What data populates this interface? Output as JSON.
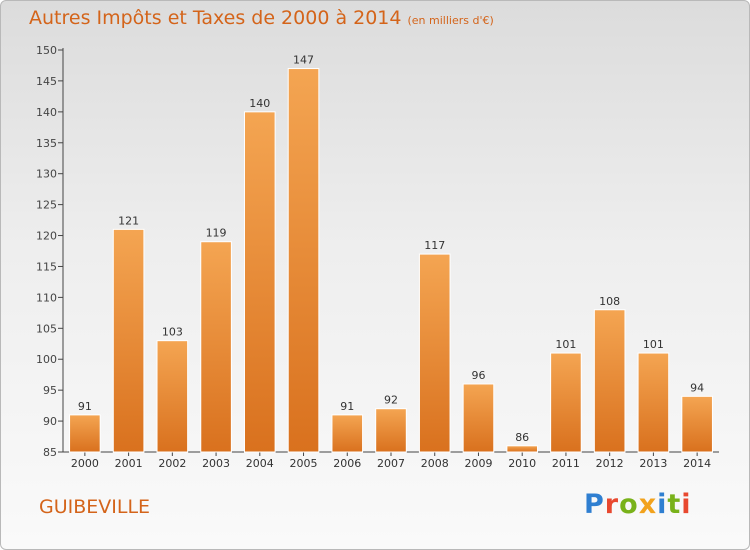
{
  "title": "Autres Impôts et Taxes de 2000 à 2014",
  "title_unit": "(en milliers d'€)",
  "commune": "GUIBEVILLE",
  "logo_text": "Proxiti",
  "colors": {
    "accent": "#d4641a",
    "bar_top": "#f4a552",
    "bar_bottom": "#d9711e",
    "logo_letters": [
      "#2f7fd1",
      "#e8482f",
      "#79b21a",
      "#f2a21c",
      "#2f7fd1",
      "#79b21a",
      "#e8482f"
    ]
  },
  "chart_data": {
    "type": "bar",
    "title": "Autres Impôts et Taxes de 2000 à 2014",
    "ylabel": "",
    "xlabel": "",
    "categories": [
      "2000",
      "2001",
      "2002",
      "2003",
      "2004",
      "2005",
      "2006",
      "2007",
      "2008",
      "2009",
      "2010",
      "2011",
      "2012",
      "2013",
      "2014"
    ],
    "values": [
      91,
      121,
      103,
      119,
      140,
      147,
      91,
      92,
      117,
      96,
      86,
      101,
      108,
      101,
      94
    ],
    "ylim": [
      85,
      150
    ],
    "yticks": [
      85,
      90,
      95,
      100,
      105,
      110,
      115,
      120,
      125,
      130,
      135,
      140,
      145,
      150
    ],
    "grid": false,
    "legend": "none"
  }
}
